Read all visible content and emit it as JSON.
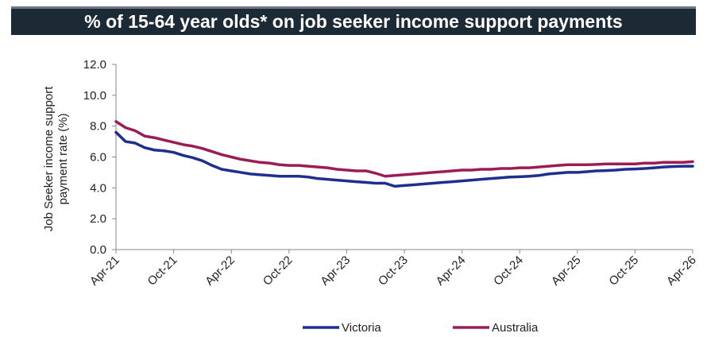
{
  "title": "% of 15-64 year olds* on job seeker income support payments",
  "chart_data": {
    "type": "line",
    "title": "% of 15-64 year olds* on job seeker income support payments",
    "ylabel_line1": "Job Seeker income support",
    "ylabel_line2": "payment rate (%)",
    "ylim": [
      0,
      12
    ],
    "yticks": [
      "12.0",
      "10.0",
      "8.0",
      "6.0",
      "4.0",
      "2.0",
      "0.0"
    ],
    "ytick_values": [
      12,
      10,
      8,
      6,
      4,
      2,
      0
    ],
    "xtick_labels": [
      "Apr-21",
      "Oct-21",
      "Apr-22",
      "Oct-22",
      "Apr-23",
      "Oct-23",
      "Apr-24",
      "Oct-24",
      "Apr-25",
      "Oct-25",
      "Apr-26"
    ],
    "x_start": "Apr-21",
    "x_end": "Apr-26",
    "grid": false,
    "legend_position": "bottom",
    "series": [
      {
        "name": "Victoria",
        "color": "#1f2f8f",
        "values": [
          7.6,
          7.0,
          6.9,
          6.6,
          6.45,
          6.4,
          6.3,
          6.1,
          5.95,
          5.75,
          5.45,
          5.2,
          5.1,
          5.0,
          4.9,
          4.85,
          4.8,
          4.75,
          4.75,
          4.75,
          4.7,
          4.6,
          4.55,
          4.5,
          4.45,
          4.4,
          4.35,
          4.3,
          4.3,
          4.1,
          4.15,
          4.2,
          4.25,
          4.3,
          4.35,
          4.4,
          4.45,
          4.5,
          4.55,
          4.6,
          4.65,
          4.7,
          4.72,
          4.75,
          4.8,
          4.9,
          4.95,
          5.0,
          5.0,
          5.05,
          5.1,
          5.12,
          5.15,
          5.2,
          5.22,
          5.25,
          5.3,
          5.35,
          5.38,
          5.4,
          5.4
        ]
      },
      {
        "name": "Australia",
        "color": "#9c1d55",
        "values": [
          8.3,
          7.9,
          7.7,
          7.35,
          7.25,
          7.1,
          6.95,
          6.8,
          6.7,
          6.55,
          6.35,
          6.15,
          6.0,
          5.85,
          5.75,
          5.65,
          5.6,
          5.5,
          5.45,
          5.45,
          5.4,
          5.35,
          5.3,
          5.2,
          5.15,
          5.1,
          5.1,
          4.95,
          4.75,
          4.8,
          4.85,
          4.9,
          4.95,
          5.0,
          5.05,
          5.1,
          5.15,
          5.15,
          5.2,
          5.2,
          5.25,
          5.25,
          5.3,
          5.3,
          5.35,
          5.4,
          5.45,
          5.5,
          5.5,
          5.5,
          5.52,
          5.55,
          5.55,
          5.55,
          5.55,
          5.6,
          5.6,
          5.65,
          5.65,
          5.65,
          5.7
        ]
      }
    ]
  }
}
